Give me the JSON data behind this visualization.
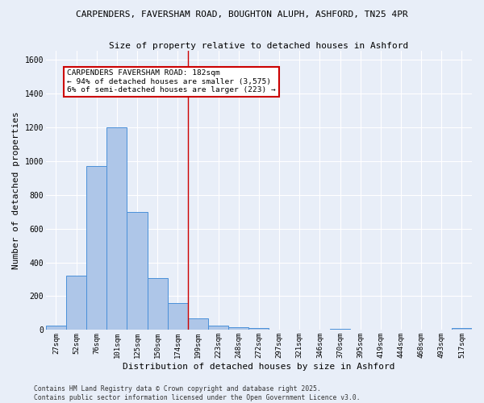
{
  "title1": "CARPENDERS, FAVERSHAM ROAD, BOUGHTON ALUPH, ASHFORD, TN25 4PR",
  "title2": "Size of property relative to detached houses in Ashford",
  "xlabel": "Distribution of detached houses by size in Ashford",
  "ylabel": "Number of detached properties",
  "footer1": "Contains HM Land Registry data © Crown copyright and database right 2025.",
  "footer2": "Contains public sector information licensed under the Open Government Licence v3.0.",
  "bar_labels": [
    "27sqm",
    "52sqm",
    "76sqm",
    "101sqm",
    "125sqm",
    "150sqm",
    "174sqm",
    "199sqm",
    "223sqm",
    "248sqm",
    "272sqm",
    "297sqm",
    "321sqm",
    "346sqm",
    "370sqm",
    "395sqm",
    "419sqm",
    "444sqm",
    "468sqm",
    "493sqm",
    "517sqm"
  ],
  "bar_values": [
    25,
    320,
    970,
    1200,
    700,
    305,
    160,
    70,
    28,
    18,
    10,
    0,
    0,
    0,
    8,
    0,
    0,
    0,
    0,
    0,
    10
  ],
  "bar_color": "#aec6e8",
  "bar_edge_color": "#4a90d9",
  "annotation_text1": "CARPENDERS FAVERSHAM ROAD: 182sqm",
  "annotation_text2": "← 94% of detached houses are smaller (3,575)",
  "annotation_text3": "6% of semi-detached houses are larger (223) →",
  "annotation_box_color": "#ffffff",
  "annotation_border_color": "#cc0000",
  "vline_color": "#cc0000",
  "background_color": "#e8eef8",
  "grid_color": "#ffffff",
  "ylim": [
    0,
    1650
  ],
  "yticks": [
    0,
    200,
    400,
    600,
    800,
    1000,
    1200,
    1400,
    1600
  ]
}
